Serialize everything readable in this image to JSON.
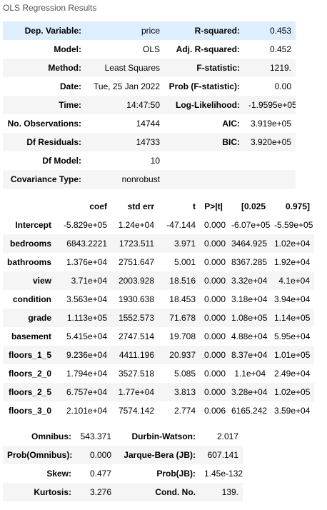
{
  "caption": "OLS Regression Results",
  "summary": [
    {
      "k1": "Dep. Variable:",
      "v1": "price",
      "k2": "R-squared:",
      "v2": "0.453"
    },
    {
      "k1": "Model:",
      "v1": "OLS",
      "k2": "Adj. R-squared:",
      "v2": "0.452"
    },
    {
      "k1": "Method:",
      "v1": "Least Squares",
      "k2": "F-statistic:",
      "v2": "1219."
    },
    {
      "k1": "Date:",
      "v1": "Tue, 25 Jan 2022",
      "k2": "Prob (F-statistic):",
      "v2": "0.00"
    },
    {
      "k1": "Time:",
      "v1": "14:47:50",
      "k2": "Log-Likelihood:",
      "v2": "-1.9595e+05"
    },
    {
      "k1": "No. Observations:",
      "v1": "14744",
      "k2": "AIC:",
      "v2": "3.919e+05"
    },
    {
      "k1": "Df Residuals:",
      "v1": "14733",
      "k2": "BIC:",
      "v2": "3.920e+05"
    },
    {
      "k1": "Df Model:",
      "v1": "10",
      "k2": "",
      "v2": ""
    },
    {
      "k1": "Covariance Type:",
      "v1": "nonrobust",
      "k2": "",
      "v2": ""
    }
  ],
  "coef_headers": [
    "",
    "coef",
    "std err",
    "t",
    "P>|t|",
    "[0.025",
    "0.975]"
  ],
  "coef_rows": [
    [
      "Intercept",
      "-5.829e+05",
      "1.24e+04",
      "-47.144",
      "0.000",
      "-6.07e+05",
      "-5.59e+05"
    ],
    [
      "bedrooms",
      "6843.2221",
      "1723.511",
      "3.971",
      "0.000",
      "3464.925",
      "1.02e+04"
    ],
    [
      "bathrooms",
      "1.376e+04",
      "2751.647",
      "5.001",
      "0.000",
      "8367.285",
      "1.92e+04"
    ],
    [
      "view",
      "3.71e+04",
      "2003.928",
      "18.516",
      "0.000",
      "3.32e+04",
      "4.1e+04"
    ],
    [
      "condition",
      "3.563e+04",
      "1930.638",
      "18.453",
      "0.000",
      "3.18e+04",
      "3.94e+04"
    ],
    [
      "grade",
      "1.113e+05",
      "1552.573",
      "71.678",
      "0.000",
      "1.08e+05",
      "1.14e+05"
    ],
    [
      "basement",
      "5.415e+04",
      "2747.514",
      "19.708",
      "0.000",
      "4.88e+04",
      "5.95e+04"
    ],
    [
      "floors_1_5",
      "9.236e+04",
      "4411.196",
      "20.937",
      "0.000",
      "8.37e+04",
      "1.01e+05"
    ],
    [
      "floors_2_0",
      "1.794e+04",
      "3527.518",
      "5.085",
      "0.000",
      "1.1e+04",
      "2.49e+04"
    ],
    [
      "floors_2_5",
      "6.757e+04",
      "1.77e+04",
      "3.813",
      "0.000",
      "3.28e+04",
      "1.02e+05"
    ],
    [
      "floors_3_0",
      "2.101e+04",
      "7574.142",
      "2.774",
      "0.006",
      "6165.242",
      "3.59e+04"
    ]
  ],
  "diag": [
    {
      "k1": "Omnibus:",
      "v1": "543.371",
      "k2": "Durbin-Watson:",
      "v2": "2.017"
    },
    {
      "k1": "Prob(Omnibus):",
      "v1": "0.000",
      "k2": "Jarque-Bera (JB):",
      "v2": "607.141"
    },
    {
      "k1": "Skew:",
      "v1": "0.477",
      "k2": "Prob(JB):",
      "v2": "1.45e-132"
    },
    {
      "k1": "Kurtosis:",
      "v1": "3.276",
      "k2": "Cond. No.",
      "v2": "139."
    }
  ]
}
